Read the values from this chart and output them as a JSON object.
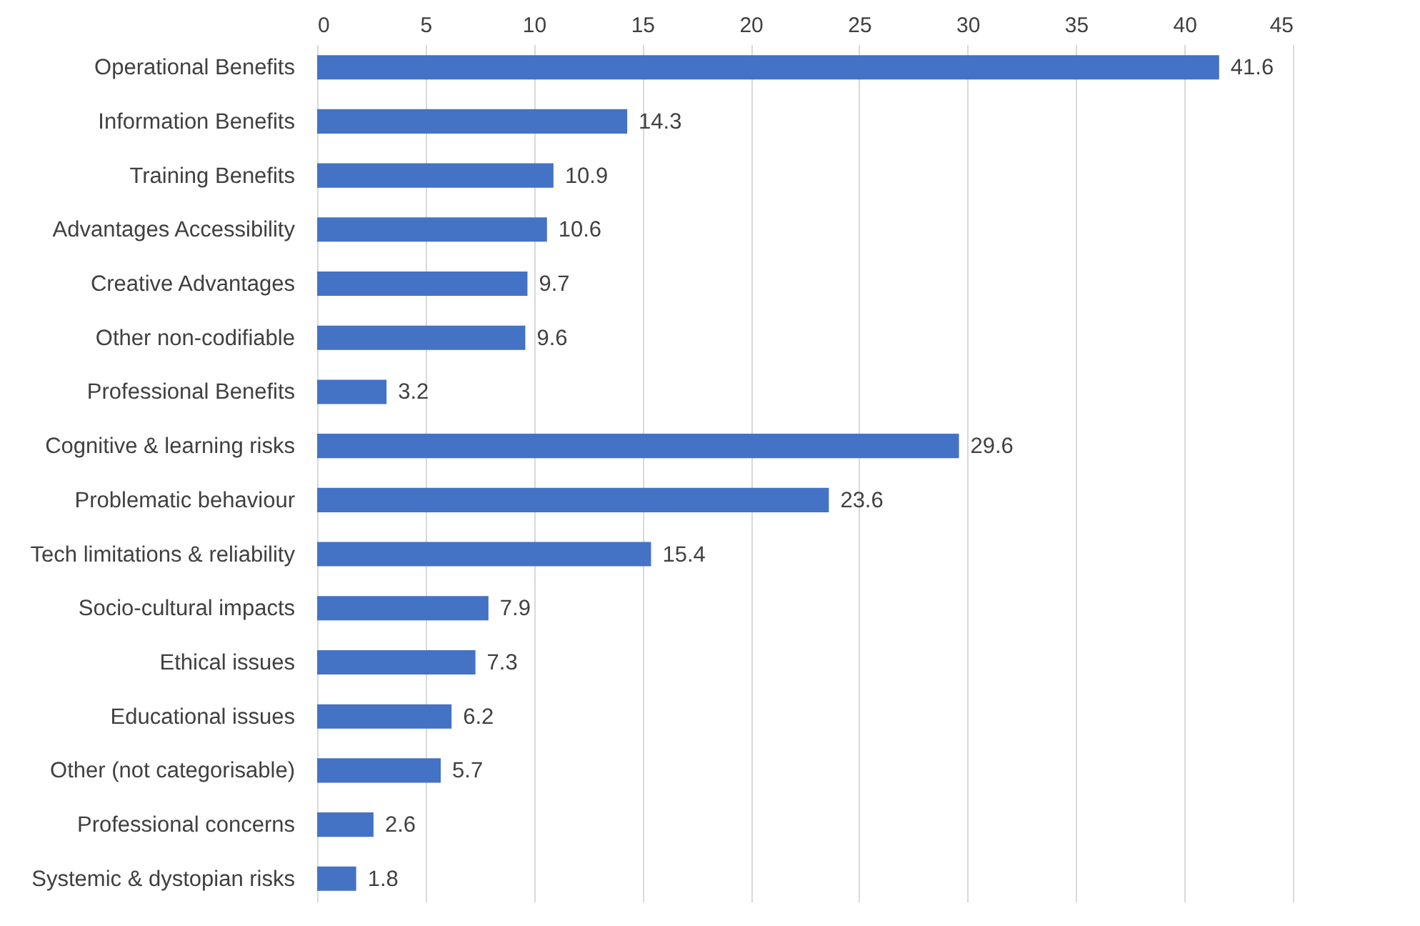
{
  "chart_data": {
    "type": "bar",
    "orientation": "horizontal",
    "categories": [
      "Operational Benefits",
      "Information Benefits",
      "Training Benefits",
      "Advantages Accessibility",
      "Creative Advantages",
      "Other non-codifiable",
      "Professional Benefits",
      "Cognitive & learning risks",
      "Problematic behaviour",
      "Tech limitations & reliability",
      "Socio-cultural impacts",
      "Ethical issues",
      "Educational issues",
      "Other (not categorisable)",
      "Professional concerns",
      "Systemic & dystopian risks"
    ],
    "values": [
      41.6,
      14.3,
      10.9,
      10.6,
      9.7,
      9.6,
      3.2,
      29.6,
      23.6,
      15.4,
      7.9,
      7.3,
      6.2,
      5.7,
      2.6,
      1.8
    ],
    "color": "#4472c4",
    "xlim": [
      0,
      45
    ],
    "xticks": [
      0,
      5,
      10,
      15,
      20,
      25,
      30,
      35,
      40,
      45
    ],
    "grid": "x",
    "data_labels": true
  }
}
